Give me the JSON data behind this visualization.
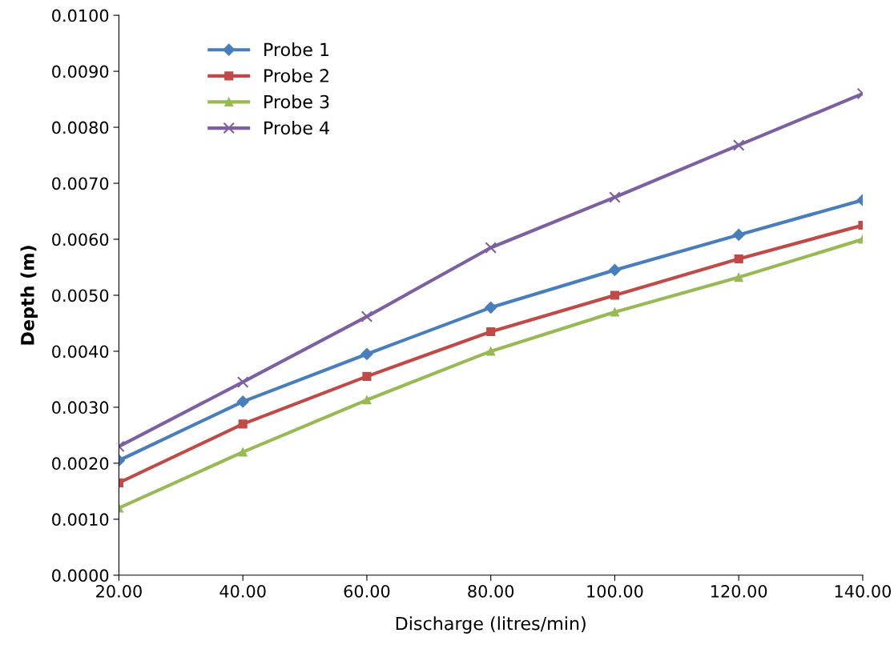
{
  "chart_data": {
    "type": "line",
    "xlabel": "Discharge (litres/min)",
    "ylabel": "Depth (m)",
    "x": [
      20,
      40,
      60,
      80,
      100,
      120,
      140
    ],
    "series": [
      {
        "name": "Probe 1",
        "color": "#4a7ebb",
        "marker": "diamond",
        "values": [
          0.00205,
          0.0031,
          0.00395,
          0.00478,
          0.00545,
          0.00608,
          0.0067
        ]
      },
      {
        "name": "Probe 2",
        "color": "#be4b48",
        "marker": "square",
        "values": [
          0.00165,
          0.0027,
          0.00355,
          0.00435,
          0.005,
          0.00565,
          0.00625
        ]
      },
      {
        "name": "Probe 3",
        "color": "#98b954",
        "marker": "triangle",
        "values": [
          0.0012,
          0.0022,
          0.00313,
          0.004,
          0.0047,
          0.00532,
          0.006
        ]
      },
      {
        "name": "Probe 4",
        "color": "#7d60a0",
        "marker": "cross",
        "values": [
          0.0023,
          0.00345,
          0.00462,
          0.00585,
          0.00675,
          0.00768,
          0.0086
        ]
      }
    ],
    "xlim": [
      20,
      140
    ],
    "xticks": [
      {
        "value": 20,
        "label": "20.00"
      },
      {
        "value": 40,
        "label": "40.00"
      },
      {
        "value": 60,
        "label": "60.00"
      },
      {
        "value": 80,
        "label": "80.00"
      },
      {
        "value": 100,
        "label": "100.00"
      },
      {
        "value": 120,
        "label": "120.00"
      },
      {
        "value": 140,
        "label": "140.00"
      }
    ],
    "ylim": [
      0,
      0.01
    ],
    "yticks": [
      {
        "value": 0,
        "label": "0.0000"
      },
      {
        "value": 0.001,
        "label": "0.0010"
      },
      {
        "value": 0.002,
        "label": "0.0020"
      },
      {
        "value": 0.003,
        "label": "0.0030"
      },
      {
        "value": 0.004,
        "label": "0.0040"
      },
      {
        "value": 0.005,
        "label": "0.0050"
      },
      {
        "value": 0.006,
        "label": "0.0060"
      },
      {
        "value": 0.007,
        "label": "0.0070"
      },
      {
        "value": 0.008,
        "label": "0.0080"
      },
      {
        "value": 0.009,
        "label": "0.0090"
      },
      {
        "value": 0.01,
        "label": "0.0100"
      }
    ],
    "grid": false,
    "legend": "top left",
    "line_style": "solid"
  }
}
